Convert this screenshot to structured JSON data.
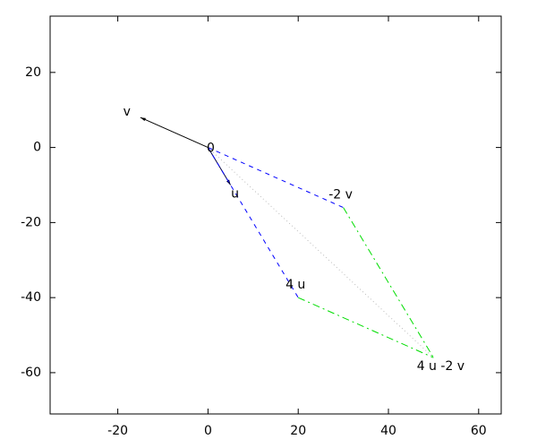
{
  "chart_data": {
    "type": "vector",
    "xlim": [
      -35,
      65
    ],
    "ylim": [
      -71,
      35
    ],
    "xticks": [
      -20,
      0,
      20,
      40,
      60
    ],
    "yticks": [
      20,
      0,
      -20,
      -40,
      -60
    ],
    "series": [
      {
        "x": [
          0,
          -15
        ],
        "y": [
          0,
          8
        ],
        "color": "#000000",
        "style": "solid",
        "arrow": true
      },
      {
        "x": [
          0,
          5
        ],
        "y": [
          0,
          -10
        ],
        "color": "#000040",
        "style": "solid",
        "arrow": true
      },
      {
        "x": [
          0,
          20
        ],
        "y": [
          0,
          -40
        ],
        "color": "#0000ff",
        "style": "dashed",
        "arrow": false
      },
      {
        "x": [
          0,
          30
        ],
        "y": [
          0,
          -16
        ],
        "color": "#0000ff",
        "style": "dashed",
        "arrow": false
      },
      {
        "x": [
          20,
          50
        ],
        "y": [
          -40,
          -56
        ],
        "color": "#00dd00",
        "style": "dashdot",
        "arrow": false
      },
      {
        "x": [
          30,
          50
        ],
        "y": [
          -16,
          -56
        ],
        "color": "#00dd00",
        "style": "dashdot",
        "arrow": false
      },
      {
        "x": [
          0,
          50
        ],
        "y": [
          0,
          -56
        ],
        "color": "#bbbbbb",
        "style": "dotted",
        "arrow": false
      }
    ],
    "labels": [
      {
        "text": "v",
        "x": -15,
        "y": 8
      },
      {
        "text": "0",
        "x": 0,
        "y": 0
      },
      {
        "text": "u",
        "x": 5,
        "y": -10
      },
      {
        "text": "-2 v",
        "x": 30,
        "y": -16
      },
      {
        "text": "4 u",
        "x": 20,
        "y": -40
      },
      {
        "text": "4 u -2 v",
        "x": 50,
        "y": -56
      }
    ]
  }
}
